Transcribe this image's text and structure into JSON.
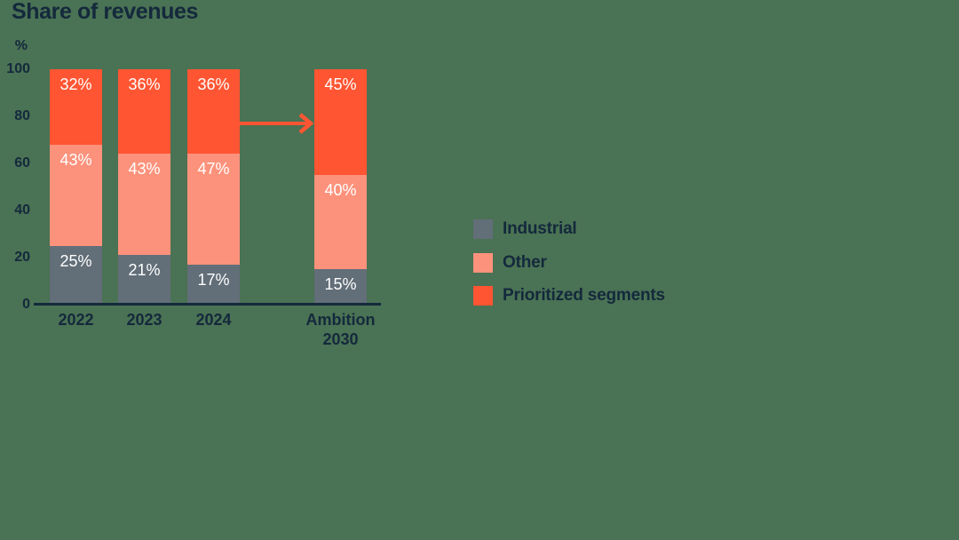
{
  "title": "Share of revenues",
  "background_color": "#4A7254",
  "colors": {
    "industrial": "#626E78",
    "other": "#FC927C",
    "prioritized": "#FF5532",
    "text": "#14293C",
    "value_label": "#FFFFFF"
  },
  "legend": {
    "items": [
      {
        "key": "industrial",
        "label": "Industrial"
      },
      {
        "key": "other",
        "label": "Other"
      },
      {
        "key": "prioritized",
        "label": "Prioritized segments"
      }
    ]
  },
  "chart_data": {
    "type": "bar",
    "stacked": true,
    "title": "Share of revenues",
    "ylabel": "%",
    "xlabel": "",
    "ylim": [
      0,
      100
    ],
    "yticks": [
      0,
      20,
      40,
      60,
      80,
      100
    ],
    "grid": false,
    "legend_position": "right",
    "categories": [
      "2022",
      "2023",
      "2024",
      "Ambition 2030"
    ],
    "tick_labels": [
      "2022",
      "2023",
      "2024",
      "Ambition\n2030"
    ],
    "series": [
      {
        "name": "Industrial",
        "color_key": "industrial",
        "values": [
          25,
          21,
          17,
          15
        ]
      },
      {
        "name": "Other",
        "color_key": "other",
        "values": [
          43,
          43,
          47,
          40
        ]
      },
      {
        "name": "Prioritized segments",
        "color_key": "prioritized",
        "values": [
          32,
          36,
          36,
          45
        ]
      }
    ],
    "value_label_format": "{v}%",
    "annotations": [
      {
        "type": "arrow",
        "from_category": "2024",
        "to_category": "Ambition 2030",
        "at_value": 77
      }
    ]
  }
}
